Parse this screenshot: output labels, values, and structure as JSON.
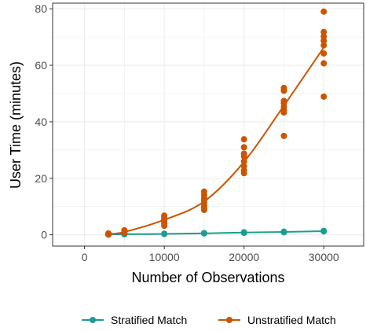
{
  "chart_data": {
    "type": "scatter",
    "title": "",
    "xlabel": "Number of Observations",
    "ylabel": "User Time (minutes)",
    "xlim": [
      -4000,
      35000
    ],
    "ylim": [
      -4,
      82
    ],
    "x_ticks": [
      0,
      10000,
      20000,
      30000
    ],
    "x_tick_labels": [
      "0",
      "10000",
      "20000",
      "30000"
    ],
    "y_ticks": [
      0,
      20,
      40,
      60,
      80
    ],
    "y_tick_labels": [
      "0",
      "20",
      "40",
      "60",
      "80"
    ],
    "grid": true,
    "legend_position": "bottom",
    "series": [
      {
        "name": "Stratified Match",
        "color": "#1b9e8f",
        "line_x": [
          3000,
          5000,
          10000,
          15000,
          20000,
          25000,
          30000
        ],
        "line_y": [
          0.1,
          0.2,
          0.3,
          0.5,
          0.8,
          1.0,
          1.3
        ],
        "points": [
          [
            3000,
            0.1
          ],
          [
            3000,
            0.1
          ],
          [
            3000,
            0.2
          ],
          [
            5000,
            0.2
          ],
          [
            5000,
            0.2
          ],
          [
            5000,
            0.3
          ],
          [
            10000,
            0.3
          ],
          [
            10000,
            0.4
          ],
          [
            10000,
            0.3
          ],
          [
            15000,
            0.5
          ],
          [
            15000,
            0.6
          ],
          [
            15000,
            0.5
          ],
          [
            20000,
            0.8
          ],
          [
            20000,
            0.9
          ],
          [
            20000,
            0.7
          ],
          [
            25000,
            1.0
          ],
          [
            25000,
            1.1
          ],
          [
            25000,
            0.9
          ],
          [
            30000,
            1.3
          ],
          [
            30000,
            1.4
          ],
          [
            30000,
            1.2
          ]
        ]
      },
      {
        "name": "Unstratified Match",
        "color": "#cc5500",
        "line_x": [
          3000,
          5000,
          10000,
          15000,
          20000,
          25000,
          30000
        ],
        "line_y": [
          0.3,
          1.0,
          5.3,
          11.8,
          25.8,
          45.7,
          66.3
        ],
        "points": [
          [
            3000,
            0.2
          ],
          [
            3000,
            0.3
          ],
          [
            3000,
            0.5
          ],
          [
            3000,
            0.1
          ],
          [
            5000,
            0.7
          ],
          [
            5000,
            1.0
          ],
          [
            5000,
            1.3
          ],
          [
            5000,
            1.6
          ],
          [
            10000,
            3.2
          ],
          [
            10000,
            3.9
          ],
          [
            10000,
            4.6
          ],
          [
            10000,
            5.2
          ],
          [
            10000,
            5.8
          ],
          [
            10000,
            6.3
          ],
          [
            10000,
            6.8
          ],
          [
            15000,
            8.8
          ],
          [
            15000,
            9.6
          ],
          [
            15000,
            10.5
          ],
          [
            15000,
            11.3
          ],
          [
            15000,
            12.2
          ],
          [
            15000,
            13.0
          ],
          [
            15000,
            14.2
          ],
          [
            15000,
            15.3
          ],
          [
            20000,
            21.8
          ],
          [
            20000,
            22.8
          ],
          [
            20000,
            24.3
          ],
          [
            20000,
            26.0
          ],
          [
            20000,
            27.8
          ],
          [
            20000,
            28.7
          ],
          [
            20000,
            31.0
          ],
          [
            20000,
            33.8
          ],
          [
            25000,
            35.0
          ],
          [
            25000,
            43.3
          ],
          [
            25000,
            44.2
          ],
          [
            25000,
            45.3
          ],
          [
            25000,
            46.6
          ],
          [
            25000,
            47.4
          ],
          [
            25000,
            51.0
          ],
          [
            25000,
            52.0
          ],
          [
            30000,
            48.9
          ],
          [
            30000,
            60.7
          ],
          [
            30000,
            64.2
          ],
          [
            30000,
            67.1
          ],
          [
            30000,
            68.7
          ],
          [
            30000,
            70.2
          ],
          [
            30000,
            71.8
          ],
          [
            30000,
            79.0
          ]
        ]
      }
    ]
  }
}
